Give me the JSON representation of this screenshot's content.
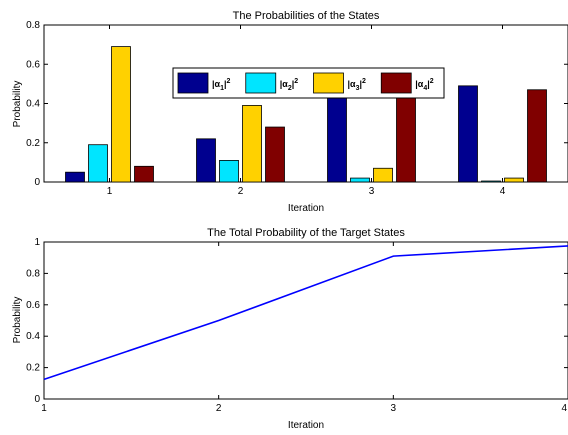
{
  "chart_data": [
    {
      "type": "bar",
      "title": "The Probabilities of the States",
      "xlabel": "Iteration",
      "ylabel": "Probability",
      "categories": [
        "1",
        "2",
        "3",
        "4"
      ],
      "ylim": [
        0,
        0.8
      ],
      "yticks": [
        "0",
        "0.2",
        "0.4",
        "0.6",
        "0.8"
      ],
      "legend_position": "top-center",
      "series": [
        {
          "name": "|α1|²",
          "sub": "1",
          "color": "#00008f",
          "values": [
            0.05,
            0.22,
            0.47,
            0.49
          ]
        },
        {
          "name": "|α2|²",
          "sub": "2",
          "color": "#00e5ff",
          "values": [
            0.19,
            0.11,
            0.02,
            0.005
          ]
        },
        {
          "name": "|α3|²",
          "sub": "3",
          "color": "#ffd100",
          "values": [
            0.69,
            0.39,
            0.07,
            0.02
          ]
        },
        {
          "name": "|α4|²",
          "sub": "4",
          "color": "#800000",
          "values": [
            0.08,
            0.28,
            0.43,
            0.47
          ]
        }
      ]
    },
    {
      "type": "line",
      "title": "The Total Probability of the Target States",
      "xlabel": "Iteration",
      "ylabel": "Probability",
      "x": [
        1,
        2,
        3,
        4
      ],
      "xticks": [
        "1",
        "2",
        "3",
        "4"
      ],
      "xlim": [
        1,
        4
      ],
      "ylim": [
        0,
        1
      ],
      "yticks": [
        "0",
        "0.2",
        "0.4",
        "0.6",
        "0.8",
        "1"
      ],
      "series": [
        {
          "color": "#0000ff",
          "values": [
            0.125,
            0.5,
            0.91,
            0.975
          ]
        }
      ]
    }
  ]
}
